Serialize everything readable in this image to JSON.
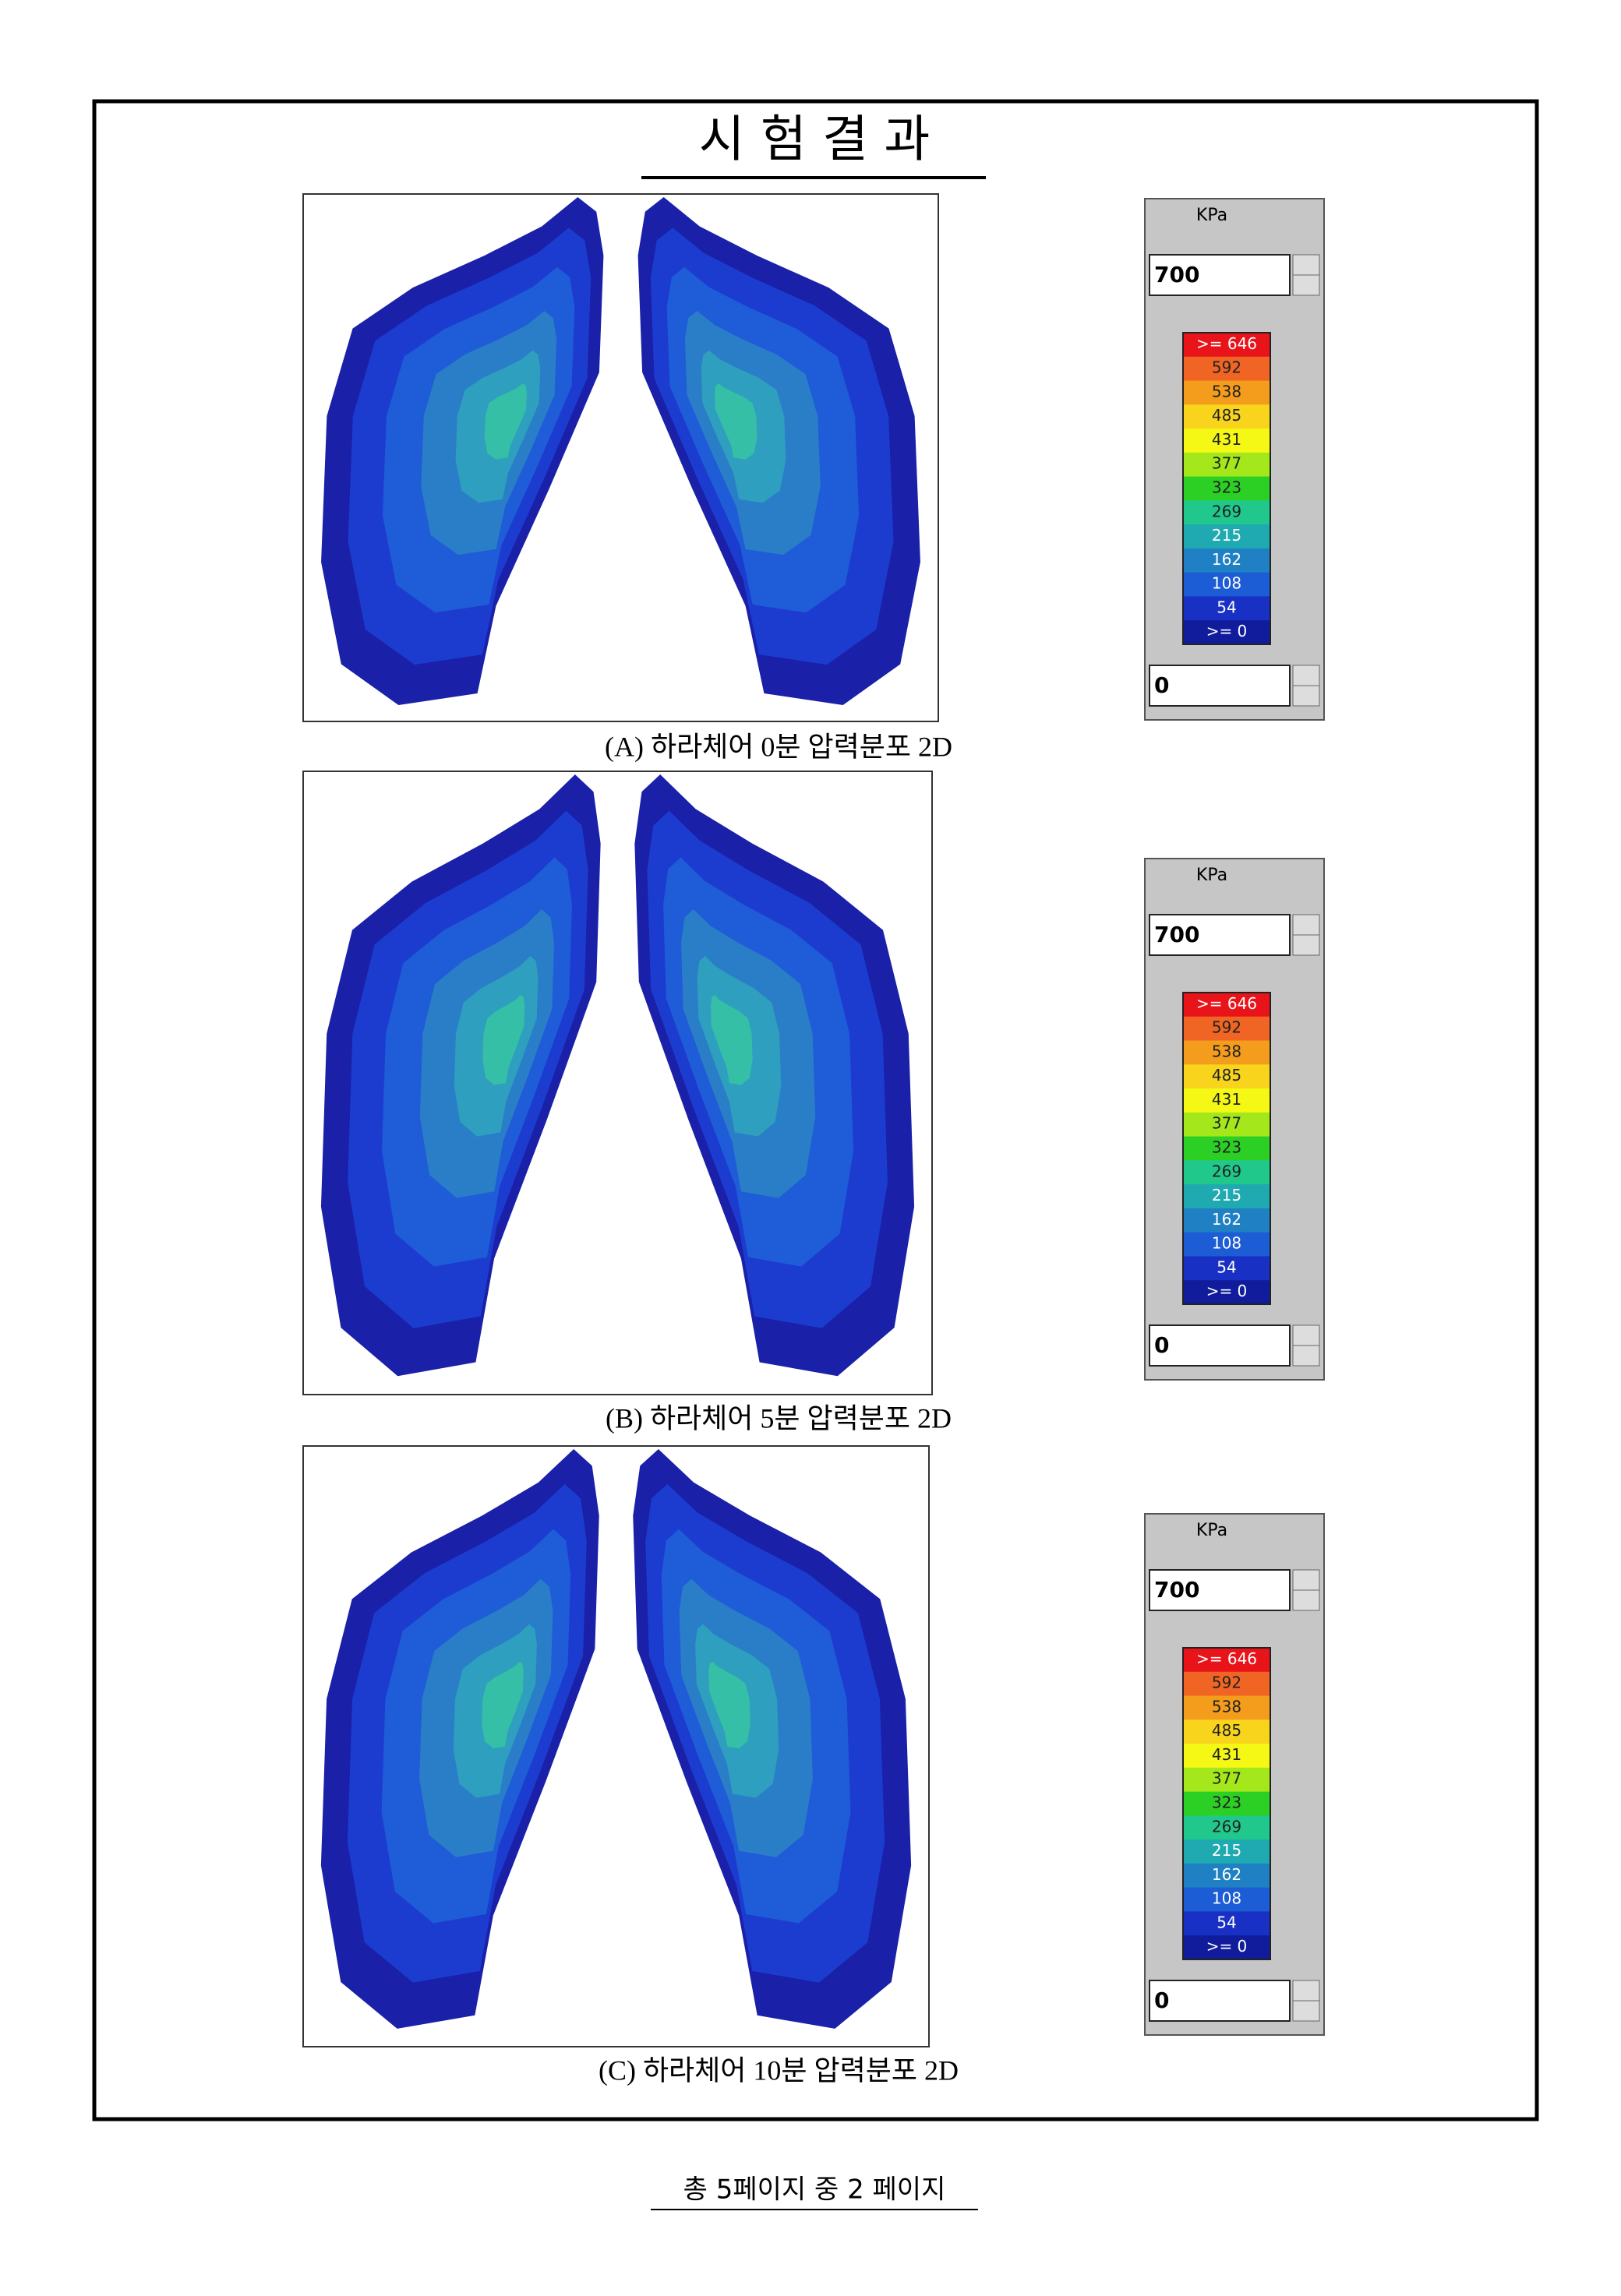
{
  "title": "시 험 결 과",
  "panels": [
    {
      "caption": "(A) 하라체어 0분 압력분포 2D",
      "unit": "KPa",
      "max": "700",
      "min": "0",
      "scale": [
        ">= 646",
        "592",
        "538",
        "485",
        "431",
        "377",
        "323",
        "269",
        "215",
        "162",
        "108",
        "54",
        ">= 0"
      ]
    },
    {
      "caption": "(B) 하라체어 5분 압력분포 2D",
      "unit": "KPa",
      "max": "700",
      "min": "0",
      "scale": [
        ">= 646",
        "592",
        "538",
        "485",
        "431",
        "377",
        "323",
        "269",
        "215",
        "162",
        "108",
        "54",
        ">= 0"
      ]
    },
    {
      "caption": "(C) 하라체어 10분 압력분포 2D",
      "unit": "KPa",
      "max": "700",
      "min": "0",
      "scale": [
        ">= 646",
        "592",
        "538",
        "485",
        "431",
        "377",
        "323",
        "269",
        "215",
        "162",
        "108",
        "54",
        ">= 0"
      ]
    }
  ],
  "legend_colors": [
    "#e8141a",
    "#f06424",
    "#f49c1c",
    "#f8d41c",
    "#f4f814",
    "#a4e81c",
    "#2cd024",
    "#20c88c",
    "#1eaab0",
    "#2080c4",
    "#1c5cd4",
    "#1830c4",
    "#101c9c"
  ],
  "footer": "총 5페이지 중 2 페이지"
}
